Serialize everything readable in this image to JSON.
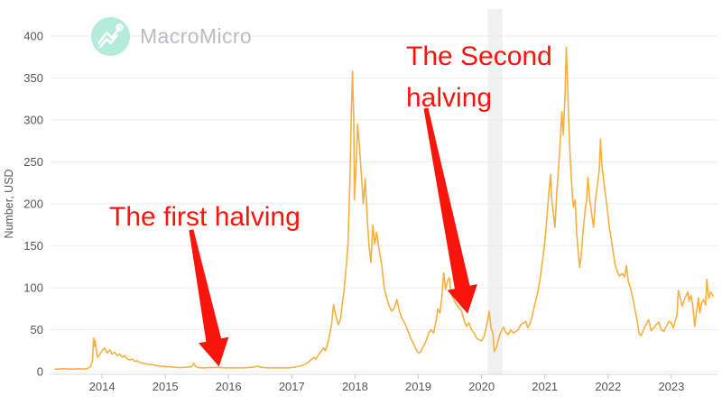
{
  "brand": {
    "name": "MacroMicro",
    "logo_icon": "trend-line-icon",
    "logo_bg_color": "#b5ebda",
    "logo_glyph_color": "#ffffff",
    "text_color": "#b9bdc0"
  },
  "chart_data": {
    "type": "line",
    "title": "",
    "xlabel": "",
    "ylabel": "Number, USD",
    "xlim": [
      2013.243,
      2023.729
    ],
    "ylim": [
      0,
      400
    ],
    "grid": "horizontal",
    "legend": "none",
    "x_ticks": [
      2014,
      2015,
      2016,
      2017,
      2018,
      2019,
      2020,
      2021,
      2022,
      2023
    ],
    "x_tick_labels": [
      "2014",
      "2015",
      "2016",
      "2017",
      "2018",
      "2019",
      "2020",
      "2021",
      "2022",
      "2023"
    ],
    "y_ticks": [
      0,
      50,
      100,
      150,
      200,
      250,
      300,
      350,
      400
    ],
    "y_tick_labels": [
      "0",
      "50",
      "100",
      "150",
      "200",
      "250",
      "300",
      "350",
      "400"
    ],
    "series_color": "#f5b041",
    "grid_color": "#ececec",
    "axis_line_color": "#d6d9db",
    "tick_text_color": "#53565a",
    "highlight_band": {
      "x_start": 2020.1,
      "x_end": 2020.33,
      "color": "#f1f1f2"
    },
    "series": [
      {
        "name": "Number, USD",
        "points": [
          [
            2013.26,
            3
          ],
          [
            2013.32,
            3
          ],
          [
            2013.4,
            3.5
          ],
          [
            2013.48,
            3
          ],
          [
            2013.56,
            3
          ],
          [
            2013.64,
            3.5
          ],
          [
            2013.72,
            3
          ],
          [
            2013.78,
            4
          ],
          [
            2013.82,
            6
          ],
          [
            2013.85,
            14
          ],
          [
            2013.86,
            28
          ],
          [
            2013.87,
            40
          ],
          [
            2013.88,
            30
          ],
          [
            2013.89,
            37
          ],
          [
            2013.91,
            24
          ],
          [
            2013.93,
            17
          ],
          [
            2013.96,
            20
          ],
          [
            2014.0,
            25
          ],
          [
            2014.04,
            28
          ],
          [
            2014.08,
            22
          ],
          [
            2014.12,
            26
          ],
          [
            2014.16,
            21
          ],
          [
            2014.2,
            23
          ],
          [
            2014.24,
            19
          ],
          [
            2014.28,
            21
          ],
          [
            2014.32,
            17
          ],
          [
            2014.36,
            19
          ],
          [
            2014.4,
            15
          ],
          [
            2014.44,
            14
          ],
          [
            2014.48,
            15
          ],
          [
            2014.52,
            12
          ],
          [
            2014.56,
            13
          ],
          [
            2014.6,
            11
          ],
          [
            2014.65,
            10
          ],
          [
            2014.7,
            9
          ],
          [
            2014.76,
            8.5
          ],
          [
            2014.82,
            8
          ],
          [
            2014.88,
            7
          ],
          [
            2014.94,
            6.5
          ],
          [
            2015.0,
            6
          ],
          [
            2015.06,
            6
          ],
          [
            2015.12,
            5.5
          ],
          [
            2015.18,
            5
          ],
          [
            2015.24,
            5
          ],
          [
            2015.3,
            5
          ],
          [
            2015.36,
            5.5
          ],
          [
            2015.42,
            6
          ],
          [
            2015.45,
            10
          ],
          [
            2015.48,
            6
          ],
          [
            2015.52,
            5
          ],
          [
            2015.58,
            4.5
          ],
          [
            2015.64,
            4.5
          ],
          [
            2015.7,
            5
          ],
          [
            2015.76,
            5
          ],
          [
            2015.82,
            5
          ],
          [
            2015.88,
            5
          ],
          [
            2015.94,
            4.5
          ],
          [
            2016.0,
            4.5
          ],
          [
            2016.08,
            4.5
          ],
          [
            2016.16,
            4.5
          ],
          [
            2016.24,
            4.5
          ],
          [
            2016.32,
            5
          ],
          [
            2016.4,
            5.5
          ],
          [
            2016.45,
            6.5
          ],
          [
            2016.5,
            5.5
          ],
          [
            2016.56,
            5
          ],
          [
            2016.62,
            4.5
          ],
          [
            2016.7,
            4.5
          ],
          [
            2016.78,
            4.5
          ],
          [
            2016.86,
            4.5
          ],
          [
            2016.94,
            4.5
          ],
          [
            2017.0,
            5
          ],
          [
            2017.06,
            5.5
          ],
          [
            2017.12,
            6.5
          ],
          [
            2017.18,
            8
          ],
          [
            2017.24,
            10
          ],
          [
            2017.3,
            14
          ],
          [
            2017.35,
            17
          ],
          [
            2017.38,
            15
          ],
          [
            2017.42,
            20
          ],
          [
            2017.46,
            24
          ],
          [
            2017.5,
            28
          ],
          [
            2017.53,
            25
          ],
          [
            2017.56,
            31
          ],
          [
            2017.6,
            45
          ],
          [
            2017.63,
            57
          ],
          [
            2017.66,
            80
          ],
          [
            2017.68,
            72
          ],
          [
            2017.71,
            62
          ],
          [
            2017.74,
            56
          ],
          [
            2017.77,
            63
          ],
          [
            2017.8,
            82
          ],
          [
            2017.83,
            100
          ],
          [
            2017.86,
            125
          ],
          [
            2017.89,
            155
          ],
          [
            2017.92,
            230
          ],
          [
            2017.94,
            305
          ],
          [
            2017.96,
            358
          ],
          [
            2017.98,
            300
          ],
          [
            2017.99,
            205
          ],
          [
            2018.02,
            250
          ],
          [
            2018.04,
            295
          ],
          [
            2018.07,
            268
          ],
          [
            2018.1,
            235
          ],
          [
            2018.13,
            200
          ],
          [
            2018.16,
            230
          ],
          [
            2018.19,
            185
          ],
          [
            2018.22,
            150
          ],
          [
            2018.25,
            130
          ],
          [
            2018.28,
            175
          ],
          [
            2018.31,
            152
          ],
          [
            2018.34,
            166
          ],
          [
            2018.38,
            145
          ],
          [
            2018.42,
            128
          ],
          [
            2018.46,
            100
          ],
          [
            2018.5,
            88
          ],
          [
            2018.54,
            78
          ],
          [
            2018.58,
            72
          ],
          [
            2018.62,
            76
          ],
          [
            2018.66,
            86
          ],
          [
            2018.7,
            72
          ],
          [
            2018.74,
            64
          ],
          [
            2018.79,
            57
          ],
          [
            2018.84,
            48
          ],
          [
            2018.88,
            40
          ],
          [
            2018.92,
            34
          ],
          [
            2018.96,
            27
          ],
          [
            2019.0,
            22
          ],
          [
            2019.04,
            24
          ],
          [
            2019.08,
            30
          ],
          [
            2019.12,
            36
          ],
          [
            2019.16,
            45
          ],
          [
            2019.2,
            50
          ],
          [
            2019.24,
            46
          ],
          [
            2019.28,
            60
          ],
          [
            2019.31,
            75
          ],
          [
            2019.34,
            70
          ],
          [
            2019.37,
            88
          ],
          [
            2019.4,
            118
          ],
          [
            2019.43,
            98
          ],
          [
            2019.46,
            108
          ],
          [
            2019.49,
            112
          ],
          [
            2019.52,
            92
          ],
          [
            2019.56,
            86
          ],
          [
            2019.6,
            80
          ],
          [
            2019.64,
            76
          ],
          [
            2019.68,
            73
          ],
          [
            2019.72,
            62
          ],
          [
            2019.76,
            54
          ],
          [
            2019.8,
            58
          ],
          [
            2019.84,
            50
          ],
          [
            2019.88,
            46
          ],
          [
            2019.92,
            40
          ],
          [
            2019.96,
            38
          ],
          [
            2020.0,
            37
          ],
          [
            2020.04,
            42
          ],
          [
            2020.08,
            55
          ],
          [
            2020.12,
            72
          ],
          [
            2020.15,
            52
          ],
          [
            2020.18,
            45
          ],
          [
            2020.2,
            24
          ],
          [
            2020.24,
            30
          ],
          [
            2020.28,
            42
          ],
          [
            2020.32,
            50
          ],
          [
            2020.35,
            53
          ],
          [
            2020.38,
            47
          ],
          [
            2020.42,
            44
          ],
          [
            2020.46,
            50
          ],
          [
            2020.5,
            46
          ],
          [
            2020.54,
            48
          ],
          [
            2020.58,
            50
          ],
          [
            2020.62,
            56
          ],
          [
            2020.66,
            58
          ],
          [
            2020.7,
            60
          ],
          [
            2020.73,
            52
          ],
          [
            2020.77,
            58
          ],
          [
            2020.8,
            66
          ],
          [
            2020.84,
            80
          ],
          [
            2020.88,
            92
          ],
          [
            2020.92,
            108
          ],
          [
            2020.96,
            130
          ],
          [
            2021.0,
            155
          ],
          [
            2021.03,
            180
          ],
          [
            2021.06,
            210
          ],
          [
            2021.09,
            235
          ],
          [
            2021.11,
            205
          ],
          [
            2021.14,
            185
          ],
          [
            2021.16,
            172
          ],
          [
            2021.19,
            215
          ],
          [
            2021.22,
            245
          ],
          [
            2021.25,
            285
          ],
          [
            2021.27,
            310
          ],
          [
            2021.29,
            282
          ],
          [
            2021.32,
            330
          ],
          [
            2021.34,
            387
          ],
          [
            2021.36,
            345
          ],
          [
            2021.38,
            290
          ],
          [
            2021.4,
            255
          ],
          [
            2021.43,
            215
          ],
          [
            2021.45,
            196
          ],
          [
            2021.48,
            205
          ],
          [
            2021.5,
            168
          ],
          [
            2021.53,
            140
          ],
          [
            2021.55,
            124
          ],
          [
            2021.58,
            143
          ],
          [
            2021.61,
            172
          ],
          [
            2021.64,
            195
          ],
          [
            2021.66,
            205
          ],
          [
            2021.68,
            232
          ],
          [
            2021.71,
            205
          ],
          [
            2021.74,
            188
          ],
          [
            2021.77,
            172
          ],
          [
            2021.8,
            205
          ],
          [
            2021.83,
            222
          ],
          [
            2021.86,
            240
          ],
          [
            2021.88,
            277
          ],
          [
            2021.9,
            248
          ],
          [
            2021.93,
            228
          ],
          [
            2021.96,
            210
          ],
          [
            2021.99,
            192
          ],
          [
            2022.02,
            172
          ],
          [
            2022.05,
            158
          ],
          [
            2022.08,
            143
          ],
          [
            2022.11,
            128
          ],
          [
            2022.14,
            120
          ],
          [
            2022.18,
            114
          ],
          [
            2022.22,
            117
          ],
          [
            2022.26,
            113
          ],
          [
            2022.29,
            126
          ],
          [
            2022.32,
            108
          ],
          [
            2022.36,
            98
          ],
          [
            2022.4,
            84
          ],
          [
            2022.43,
            72
          ],
          [
            2022.46,
            60
          ],
          [
            2022.49,
            45
          ],
          [
            2022.52,
            43
          ],
          [
            2022.56,
            50
          ],
          [
            2022.6,
            56
          ],
          [
            2022.64,
            62
          ],
          [
            2022.68,
            49
          ],
          [
            2022.72,
            52
          ],
          [
            2022.76,
            56
          ],
          [
            2022.8,
            59
          ],
          [
            2022.84,
            50
          ],
          [
            2022.88,
            48
          ],
          [
            2022.92,
            54
          ],
          [
            2022.96,
            60
          ],
          [
            2023.0,
            58
          ],
          [
            2023.03,
            52
          ],
          [
            2023.06,
            60
          ],
          [
            2023.09,
            68
          ],
          [
            2023.11,
            97
          ],
          [
            2023.14,
            88
          ],
          [
            2023.17,
            78
          ],
          [
            2023.2,
            85
          ],
          [
            2023.23,
            90
          ],
          [
            2023.26,
            95
          ],
          [
            2023.28,
            84
          ],
          [
            2023.31,
            91
          ],
          [
            2023.34,
            78
          ],
          [
            2023.37,
            54
          ],
          [
            2023.4,
            72
          ],
          [
            2023.43,
            88
          ],
          [
            2023.45,
            70
          ],
          [
            2023.48,
            82
          ],
          [
            2023.51,
            86
          ],
          [
            2023.54,
            79
          ],
          [
            2023.56,
            110
          ],
          [
            2023.59,
            87
          ],
          [
            2023.62,
            95
          ],
          [
            2023.66,
            90
          ]
        ]
      }
    ],
    "annotations": [
      {
        "name": "first-halving",
        "lines": [
          "The first halving"
        ],
        "color": "#fa140c",
        "anchor": {
          "year": 2014.12,
          "value": 209
        },
        "arrow": {
          "from": {
            "year": 2015.41,
            "value": 169
          },
          "to": {
            "year": 2015.85,
            "value": 6
          }
        }
      },
      {
        "name": "second-halving",
        "lines": [
          "The Second",
          "halving"
        ],
        "color": "#fa140c",
        "anchor": {
          "year": 2018.8,
          "value": 400
        },
        "arrow": {
          "from": {
            "year": 2019.12,
            "value": 314
          },
          "to": {
            "year": 2019.78,
            "value": 69
          }
        }
      }
    ]
  }
}
